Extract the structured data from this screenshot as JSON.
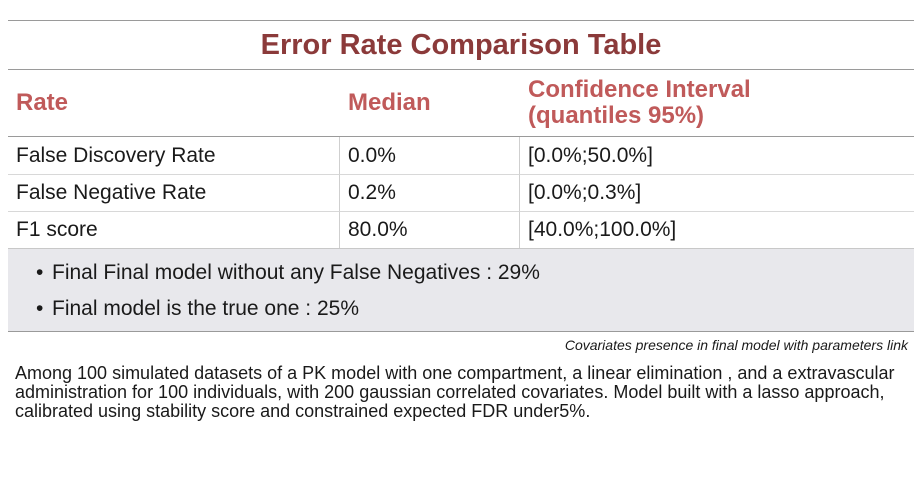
{
  "title": "Error Rate Comparison Table",
  "columns": {
    "rate": "Rate",
    "median": "Median",
    "ci_line1": "Confidence Interval",
    "ci_line2": "(quantiles 95%)"
  },
  "rows": [
    {
      "rate": "False Discovery Rate",
      "median": "0.0%",
      "ci": "[0.0%;50.0%]"
    },
    {
      "rate": "False Negative Rate",
      "median": "0.2%",
      "ci": "[0.0%;0.3%]"
    },
    {
      "rate": "F1 score",
      "median": "80.0%",
      "ci": "[40.0%;100.0%]"
    }
  ],
  "notes": [
    "Final Final model without any False Negatives : 29%",
    "Final model is the true one : 25%"
  ],
  "bullet_glyph": "•",
  "caption": "Covariates presence in final model with parameters link",
  "description": "Among 100 simulated datasets of a PK model with one compartment, a linear elimination , and a extravascular administration for 100 individuals, with 200 gaussian correlated covariates. Model built with a lasso approach, calibrated using stability score and constrained expected FDR under5%."
}
